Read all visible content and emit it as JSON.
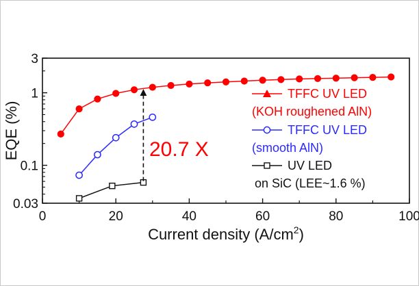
{
  "chart_data": {
    "type": "line",
    "title": "",
    "xlabel": "Current density (A/cm",
    "xlabel_sup": "2",
    "xlabel_end": ")",
    "ylabel": "EQE (%)",
    "xlim": [
      0,
      100
    ],
    "ylim": [
      0.03,
      3
    ],
    "yscale": "log",
    "grid": false,
    "legend_placement": "right",
    "x_ticks": [
      0,
      20,
      40,
      60,
      80,
      100
    ],
    "x_tick_labels": [
      "0",
      "20",
      "40",
      "60",
      "80",
      "100"
    ],
    "y_ticks": [
      0.03,
      0.1,
      1,
      3
    ],
    "y_tick_labels": [
      "0.03",
      "0.1",
      "1",
      "3"
    ],
    "series": [
      {
        "legend_lines": [
          "TFFC UV LED",
          "(KOH roughened AlN)"
        ],
        "color": "#ff0000",
        "marker": "filled-circle",
        "legend_marker": "filled-triangle",
        "x": [
          5,
          10,
          15,
          20,
          25,
          30,
          35,
          40,
          45,
          50,
          55,
          60,
          65,
          70,
          75,
          80,
          85,
          90,
          95
        ],
        "y": [
          0.27,
          0.6,
          0.82,
          0.98,
          1.1,
          1.19,
          1.26,
          1.32,
          1.37,
          1.41,
          1.45,
          1.49,
          1.52,
          1.55,
          1.57,
          1.59,
          1.61,
          1.63,
          1.65
        ]
      },
      {
        "legend_lines": [
          "TFFC UV LED",
          "(smooth AlN)"
        ],
        "color": "#2a2aff",
        "marker": "open-circle",
        "legend_marker": "open-circle",
        "x": [
          10,
          15,
          20,
          25,
          30
        ],
        "y": [
          0.073,
          0.14,
          0.24,
          0.37,
          0.46
        ]
      },
      {
        "legend_lines": [
          "UV LED",
          "on SiC (LEE~1.6 %)"
        ],
        "color": "#111111",
        "marker": "open-square",
        "legend_marker": "open-square",
        "x": [
          10,
          19,
          27.5
        ],
        "y": [
          0.035,
          0.052,
          0.058
        ]
      }
    ],
    "annotation": {
      "text": "20.7 X",
      "color": "#ff0000",
      "arrow": "dashed double-headed arrow at x = 27.5 between UV LED and TFFC (KOH) curves"
    }
  }
}
